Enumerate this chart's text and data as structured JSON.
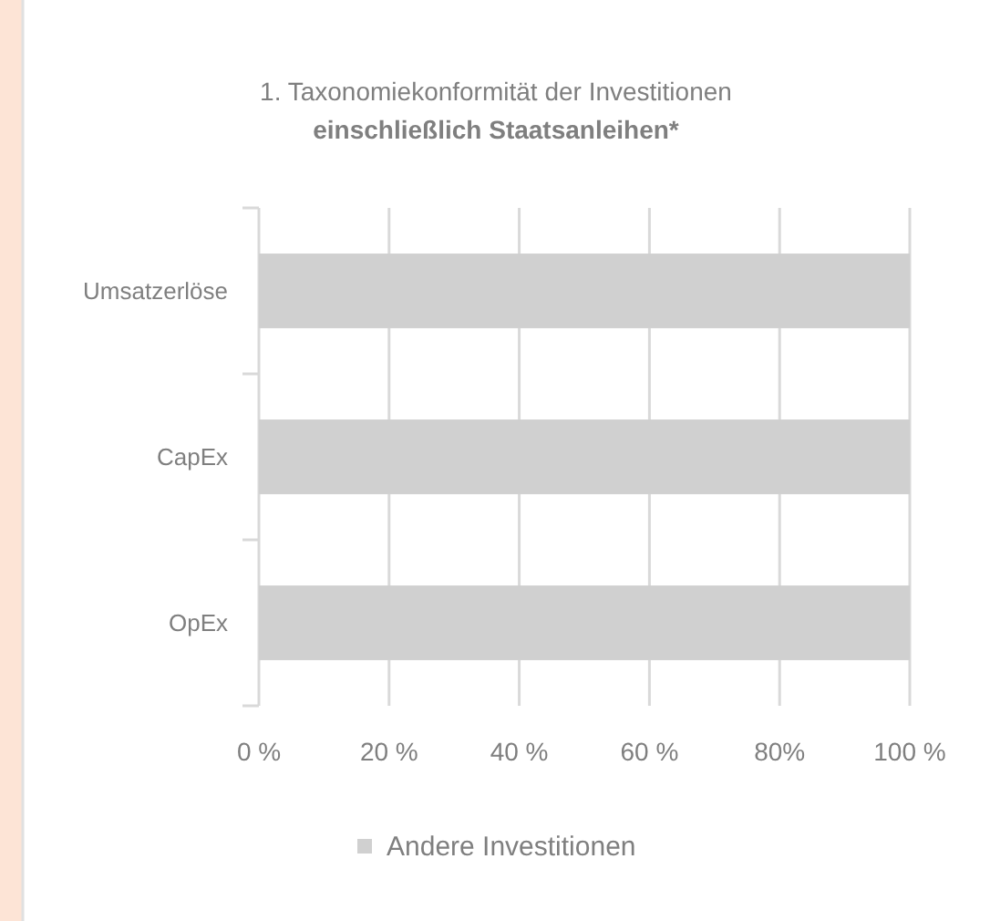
{
  "chart_data": {
    "type": "bar",
    "orientation": "horizontal",
    "title": "1. Taxonomiekonformität der Investitionen",
    "subtitle": "einschließlich Staatsanleihen*",
    "categories": [
      "Umsatzerlöse",
      "CapEx",
      "OpEx"
    ],
    "series": [
      {
        "name": "Andere Investitionen",
        "color": "#d0d0d0",
        "values": [
          100,
          100,
          100
        ]
      }
    ],
    "xlim": [
      0,
      100
    ],
    "xticks": [
      {
        "value": 0,
        "label": "0 %"
      },
      {
        "value": 20,
        "label": "20 %"
      },
      {
        "value": 40,
        "label": "40 %"
      },
      {
        "value": 60,
        "label": "60 %"
      },
      {
        "value": 80,
        "label": "80%"
      },
      {
        "value": 100,
        "label": "100 %"
      }
    ],
    "grid": "x",
    "legend": "bottom"
  }
}
